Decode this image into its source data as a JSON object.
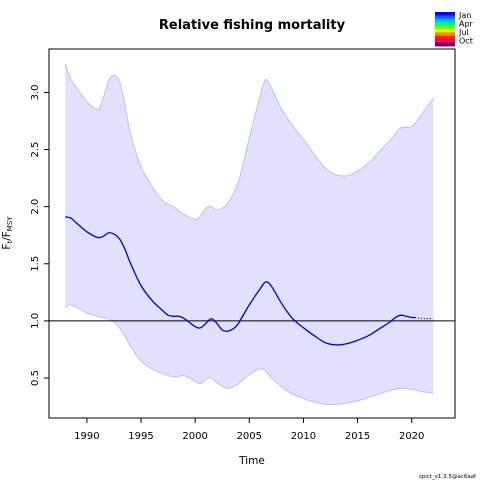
{
  "chart_data": {
    "type": "line",
    "title": "Relative fishing mortality",
    "xlabel": "Time",
    "ylabel": {
      "base": "F",
      "sub1": "t",
      "sep": "/F",
      "sub2": "MSY"
    },
    "xlim": [
      1986.5,
      2024
    ],
    "ylim": [
      0.15,
      3.38
    ],
    "xticks": [
      1990,
      1995,
      2000,
      2005,
      2010,
      2015,
      2020
    ],
    "yticks": [
      0.5,
      1.0,
      1.5,
      2.0,
      2.5,
      3.0
    ],
    "ytick_labels": [
      "0.5",
      "1.0",
      "1.5",
      "2.0",
      "2.5",
      "3.0"
    ],
    "reference_line": 1.0,
    "series": [
      {
        "x": [
          1988.0,
          1988.5,
          1989,
          1990,
          1991,
          1991.5,
          1992,
          1992.5,
          1993,
          1993.5,
          1994,
          1995,
          1996,
          1997,
          1997.5,
          1998,
          1998.5,
          1999,
          2000,
          2000.5,
          2001,
          2001.5,
          2002,
          2002.5,
          2003,
          2003.5,
          2004,
          2005,
          2006,
          2006.5,
          2007,
          2008,
          2009,
          2010,
          2011,
          2012,
          2013,
          2014,
          2015,
          2016,
          2017,
          2018,
          2018.5,
          2019,
          2019.5,
          2020,
          2020.3
        ],
        "values": [
          1.91,
          1.9,
          1.86,
          1.78,
          1.73,
          1.74,
          1.77,
          1.76,
          1.72,
          1.63,
          1.51,
          1.31,
          1.18,
          1.09,
          1.05,
          1.04,
          1.04,
          1.02,
          0.95,
          0.94,
          0.98,
          1.02,
          0.98,
          0.92,
          0.91,
          0.93,
          0.98,
          1.14,
          1.28,
          1.34,
          1.31,
          1.15,
          1.02,
          0.94,
          0.87,
          0.81,
          0.79,
          0.8,
          0.83,
          0.87,
          0.93,
          0.99,
          1.03,
          1.05,
          1.04,
          1.03,
          1.03
        ],
        "color": "#0000cc"
      },
      {
        "x": [
          2020.3,
          2021,
          2022
        ],
        "values": [
          1.03,
          1.02,
          1.02
        ],
        "color": "#0000cc",
        "style": "dotted"
      }
    ],
    "confidence_band": {
      "x": [
        1988.0,
        1988.5,
        1989,
        1990,
        1991,
        1991.5,
        1992,
        1992.5,
        1993,
        1993.5,
        1994,
        1995,
        1996,
        1997,
        1998,
        1999,
        2000,
        2000.5,
        2001,
        2001.5,
        2002,
        2003,
        2004,
        2005,
        2006,
        2006.5,
        2007,
        2008,
        2009,
        2010,
        2011,
        2012,
        2013,
        2014,
        2015,
        2016,
        2017,
        2018,
        2019,
        2020,
        2021,
        2022
      ],
      "upper": [
        3.25,
        3.12,
        3.05,
        2.92,
        2.85,
        2.95,
        3.1,
        3.15,
        3.1,
        2.9,
        2.65,
        2.35,
        2.18,
        2.05,
        2.0,
        1.93,
        1.89,
        1.92,
        1.99,
        2.0,
        1.97,
        2.03,
        2.22,
        2.6,
        2.97,
        3.11,
        3.05,
        2.85,
        2.71,
        2.59,
        2.46,
        2.34,
        2.28,
        2.27,
        2.31,
        2.38,
        2.48,
        2.58,
        2.69,
        2.7,
        2.82,
        2.95
      ],
      "lower": [
        1.12,
        1.14,
        1.12,
        1.07,
        1.04,
        1.03,
        1.02,
        0.99,
        0.94,
        0.87,
        0.78,
        0.65,
        0.58,
        0.54,
        0.51,
        0.52,
        0.47,
        0.45,
        0.49,
        0.5,
        0.46,
        0.41,
        0.45,
        0.53,
        0.58,
        0.56,
        0.51,
        0.42,
        0.36,
        0.32,
        0.29,
        0.27,
        0.27,
        0.28,
        0.3,
        0.33,
        0.36,
        0.39,
        0.41,
        0.4,
        0.38,
        0.37
      ],
      "fill": "#e1e1ff",
      "stroke": "#b4b4ee"
    },
    "grid": false,
    "legend": {
      "placement": "top-right",
      "labels": [
        "Jan",
        "Apr",
        "Jul",
        "Oct"
      ],
      "colors": [
        "#0000ff",
        "#0066ff",
        "#00bbff",
        "#00ff66",
        "#66ff00",
        "#ffee00",
        "#ff8800",
        "#ff2200",
        "#ff0066",
        "#660066"
      ]
    }
  },
  "footer": "spict_v1.3.5@ac6aaf"
}
